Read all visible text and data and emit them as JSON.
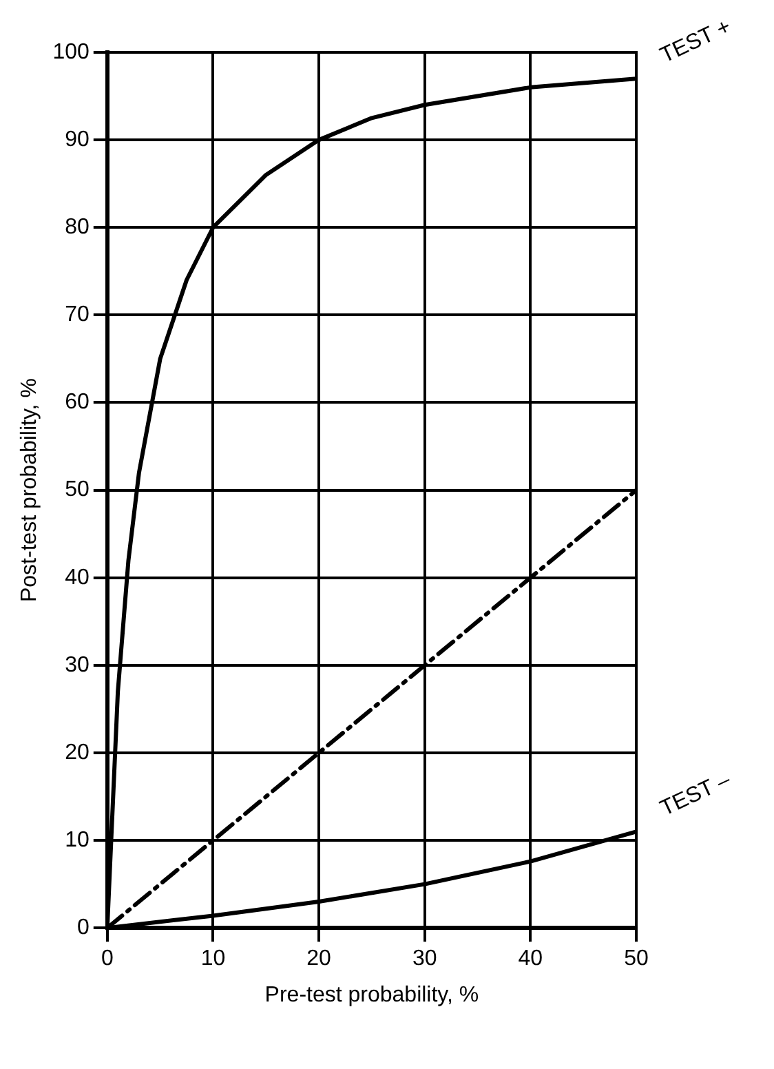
{
  "chart_data": {
    "type": "line",
    "xlabel": "Pre-test probability, %",
    "ylabel": "Post-test probability, %",
    "xlim": [
      0,
      50
    ],
    "xticks": [
      0,
      10,
      20,
      30,
      40,
      50
    ],
    "ylim": [
      0,
      100
    ],
    "yticks": [
      0,
      10,
      20,
      30,
      40,
      50,
      60,
      70,
      80,
      90,
      100
    ],
    "grid": true,
    "legend": false,
    "marker": "none",
    "series": [
      {
        "name": "TEST +",
        "color": "#000000",
        "line_style": "solid",
        "x": [
          0,
          1,
          2,
          3,
          5,
          7.5,
          10,
          15,
          20,
          25,
          30,
          40,
          50
        ],
        "values": [
          0,
          27,
          42,
          52,
          65,
          74,
          80,
          86,
          90,
          92.5,
          94,
          96,
          97
        ]
      },
      {
        "color": "#000000",
        "line_style": "dashed",
        "x": [
          0,
          50
        ],
        "values": [
          0,
          50
        ]
      },
      {
        "name": "TEST –",
        "color": "#000000",
        "line_style": "solid",
        "x": [
          0,
          10,
          20,
          30,
          40,
          50
        ],
        "values": [
          0,
          1.4,
          3,
          5,
          7.6,
          11
        ]
      }
    ]
  }
}
